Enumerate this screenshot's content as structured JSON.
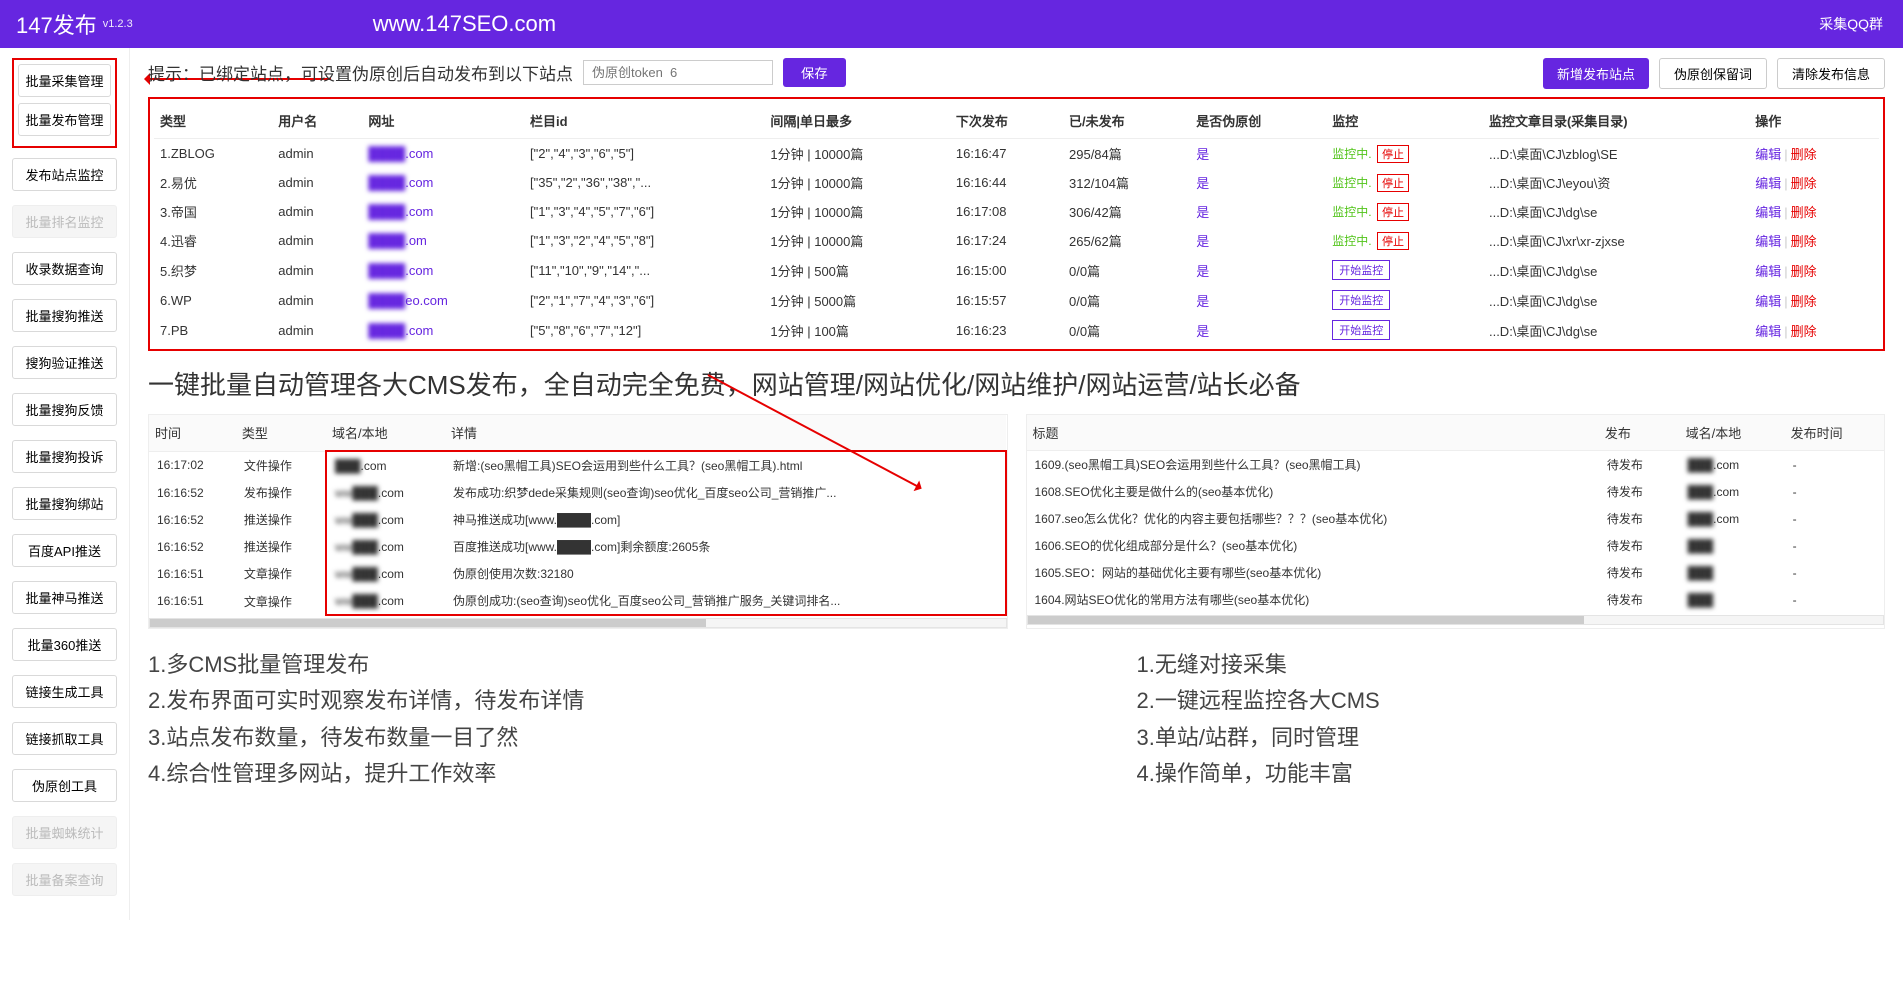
{
  "header": {
    "title": "147发布",
    "version": "v1.2.3",
    "site": "www.147SEO.com",
    "right": "采集QQ群"
  },
  "sidebar": {
    "boxed": [
      "批量采集管理",
      "批量发布管理"
    ],
    "items": [
      "发布站点监控",
      "批量排名监控",
      "收录数据查询",
      "批量搜狗推送",
      "搜狗验证推送",
      "批量搜狗反馈",
      "批量搜狗投诉",
      "批量搜狗绑站",
      "百度API推送",
      "批量神马推送",
      "批量360推送",
      "链接生成工具",
      "链接抓取工具",
      "伪原创工具",
      "批量蜘蛛统计",
      "批量备案查询"
    ],
    "disabled": [
      1,
      14,
      15
    ]
  },
  "tip": {
    "text": "提示：已绑定站点，可设置伪原创后自动发布到以下站点",
    "placeholder": "伪原创token  6",
    "save": "保存"
  },
  "actions": {
    "add": "新增发布站点",
    "keep": "伪原创保留词",
    "clear": "清除发布信息"
  },
  "table1": {
    "headers": [
      "类型",
      "用户名",
      "网址",
      "栏目id",
      "间隔|单日最多",
      "下次发布",
      "已/未发布",
      "是否伪原创",
      "监控",
      "监控文章目录(采集目录)",
      "操作"
    ],
    "rows": [
      {
        "type": "1.ZBLOG",
        "user": "admin",
        "url_pre": "████",
        "url_suf": ".com",
        "col": "[\"2\",\"4\",\"3\",\"6\",\"5\"]",
        "interval": "1分钟 | 10000篇",
        "next": "16:16:47",
        "pub": "295/84篇",
        "fake": "是",
        "mon": "on",
        "dir": "...D:\\桌面\\CJ\\zblog\\SE"
      },
      {
        "type": "2.易优",
        "user": "admin",
        "url_pre": "████",
        "url_suf": ".com",
        "col": "[\"35\",\"2\",\"36\",\"38\",\"...",
        "interval": "1分钟 | 10000篇",
        "next": "16:16:44",
        "pub": "312/104篇",
        "fake": "是",
        "mon": "on",
        "dir": "...D:\\桌面\\CJ\\eyou\\资"
      },
      {
        "type": "3.帝国",
        "user": "admin",
        "url_pre": "████",
        "url_suf": ".com",
        "col": "[\"1\",\"3\",\"4\",\"5\",\"7\",\"6\"]",
        "interval": "1分钟 | 10000篇",
        "next": "16:17:08",
        "pub": "306/42篇",
        "fake": "是",
        "mon": "on",
        "dir": "...D:\\桌面\\CJ\\dg\\se"
      },
      {
        "type": "4.迅睿",
        "user": "admin",
        "url_pre": "████",
        "url_suf": ".om",
        "col": "[\"1\",\"3\",\"2\",\"4\",\"5\",\"8\"]",
        "interval": "1分钟 | 10000篇",
        "next": "16:17:24",
        "pub": "265/62篇",
        "fake": "是",
        "mon": "on",
        "dir": "...D:\\桌面\\CJ\\xr\\xr-zjxse"
      },
      {
        "type": "5.织梦",
        "user": "admin",
        "url_pre": "████",
        "url_suf": ".com",
        "col": "[\"11\",\"10\",\"9\",\"14\",\"...",
        "interval": "1分钟 | 500篇",
        "next": "16:15:00",
        "pub": "0/0篇",
        "fake": "是",
        "mon": "off",
        "dir": "...D:\\桌面\\CJ\\dg\\se"
      },
      {
        "type": "6.WP",
        "user": "admin",
        "url_pre": "████",
        "url_suf": "eo.com",
        "col": "[\"2\",\"1\",\"7\",\"4\",\"3\",\"6\"]",
        "interval": "1分钟 | 5000篇",
        "next": "16:15:57",
        "pub": "0/0篇",
        "fake": "是",
        "mon": "off",
        "dir": "...D:\\桌面\\CJ\\dg\\se"
      },
      {
        "type": "7.PB",
        "user": "admin",
        "url_pre": "████",
        "url_suf": ".com",
        "col": "[\"5\",\"8\",\"6\",\"7\",\"12\"]",
        "interval": "1分钟 | 100篇",
        "next": "16:16:23",
        "pub": "0/0篇",
        "fake": "是",
        "mon": "off",
        "dir": "...D:\\桌面\\CJ\\dg\\se"
      }
    ],
    "monitoring": "监控中. ",
    "stop": "停止",
    "start": "开始监控",
    "edit": "编辑",
    "del": "删除"
  },
  "heading": "一键批量自动管理各大CMS发布，全自动完全免费，网站管理/网站优化/网站维护/网站运营/站长必备",
  "log1": {
    "headers": [
      "时间",
      "类型",
      "域名/本地",
      "详情"
    ],
    "rows": [
      {
        "t": "16:17:02",
        "k": "文件操作",
        "d_pre": "███",
        "d_suf": ".com",
        "msg": "新增:(seo黑帽工具)SEO会运用到些什么工具？(seo黑帽工具).html"
      },
      {
        "t": "16:16:52",
        "k": "发布操作",
        "d_pre": "ww███",
        "d_suf": ".com",
        "msg": "发布成功:织梦dede采集规则(seo查询)seo优化_百度seo公司_营销推广..."
      },
      {
        "t": "16:16:52",
        "k": "推送操作",
        "d_pre": "ww███",
        "d_suf": ".com",
        "msg": "神马推送成功[www.████.com]"
      },
      {
        "t": "16:16:52",
        "k": "推送操作",
        "d_pre": "ww███",
        "d_suf": ".com",
        "msg": "百度推送成功[www.████.com]剩余额度:2605条"
      },
      {
        "t": "16:16:51",
        "k": "文章操作",
        "d_pre": "ww███",
        "d_suf": ".com",
        "msg": "伪原创使用次数:32180"
      },
      {
        "t": "16:16:51",
        "k": "文章操作",
        "d_pre": "ww███",
        "d_suf": ".com",
        "msg": "伪原创成功:(seo查询)seo优化_百度seo公司_营销推广服务_关键词排名..."
      }
    ]
  },
  "log2": {
    "headers": [
      "标题",
      "发布",
      "域名/本地",
      "发布时间"
    ],
    "rows": [
      {
        "title": "1609.(seo黑帽工具)SEO会运用到些什么工具？(seo黑帽工具)",
        "s": "待发布",
        "d_pre": "███",
        "d_suf": ".com",
        "time": "-"
      },
      {
        "title": "1608.SEO优化主要是做什么的(seo基本优化)",
        "s": "待发布",
        "d_pre": "███",
        "d_suf": ".com",
        "time": "-"
      },
      {
        "title": "1607.seo怎么优化？优化的内容主要包括哪些？？？(seo基本优化)",
        "s": "待发布",
        "d_pre": "███",
        "d_suf": ".com",
        "time": "-"
      },
      {
        "title": "1606.SEO的优化组成部分是什么？(seo基本优化)",
        "s": "待发布",
        "d_pre": "███",
        "d_suf": "",
        "time": "-"
      },
      {
        "title": "1605.SEO：网站的基础优化主要有哪些(seo基本优化)",
        "s": "待发布",
        "d_pre": "███",
        "d_suf": "",
        "time": "-"
      },
      {
        "title": "1604.网站SEO优化的常用方法有哪些(seo基本优化)",
        "s": "待发布",
        "d_pre": "███",
        "d_suf": "",
        "time": "-"
      }
    ]
  },
  "features": {
    "left": [
      "1.多CMS批量管理发布",
      "2.发布界面可实时观察发布详情，待发布详情",
      "3.站点发布数量，待发布数量一目了然",
      "4.综合性管理多网站，提升工作效率"
    ],
    "right": [
      "1.无缝对接采集",
      "2.一键远程监控各大CMS",
      "3.单站/站群，同时管理",
      "4.操作简单，功能丰富"
    ]
  }
}
